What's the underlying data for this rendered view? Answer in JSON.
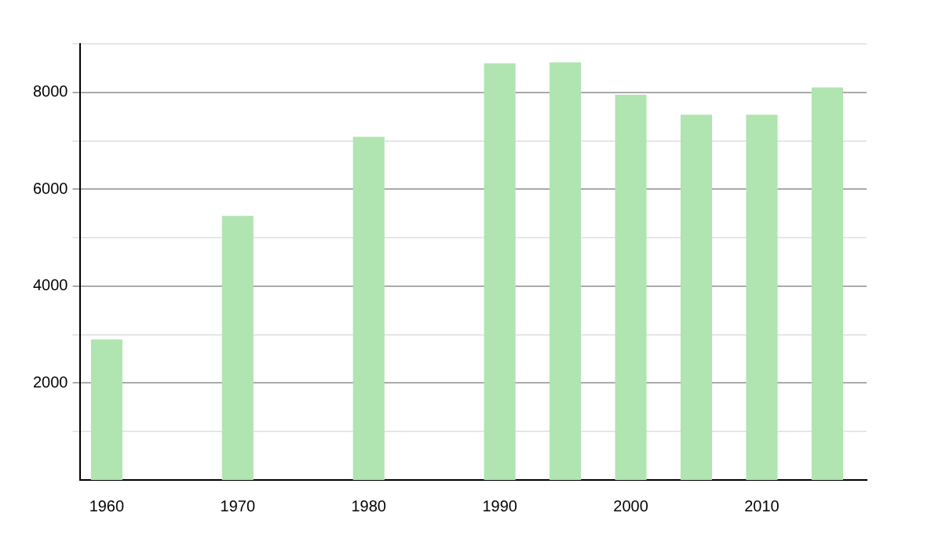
{
  "chart_data": {
    "type": "bar",
    "x": [
      1960,
      1970,
      1980,
      1990,
      1995,
      2000,
      2005,
      2010,
      2015
    ],
    "values": [
      2900,
      5450,
      7080,
      8600,
      8620,
      7950,
      7540,
      7540,
      8100
    ],
    "color": "#b0e4b0",
    "xlim": [
      1958,
      2018
    ],
    "xticks": [
      1960,
      1970,
      1980,
      1990,
      2000,
      2010
    ],
    "ylim": [
      0,
      9000
    ],
    "yticks": [
      {
        "value": 1000,
        "label": null
      },
      2000,
      {
        "value": 3000,
        "label": null
      },
      4000,
      {
        "value": 5000,
        "label": null
      },
      6000,
      {
        "value": 7000,
        "label": null
      },
      8000,
      {
        "value": 9000,
        "label": null
      }
    ],
    "grid": "y",
    "legend": false
  }
}
